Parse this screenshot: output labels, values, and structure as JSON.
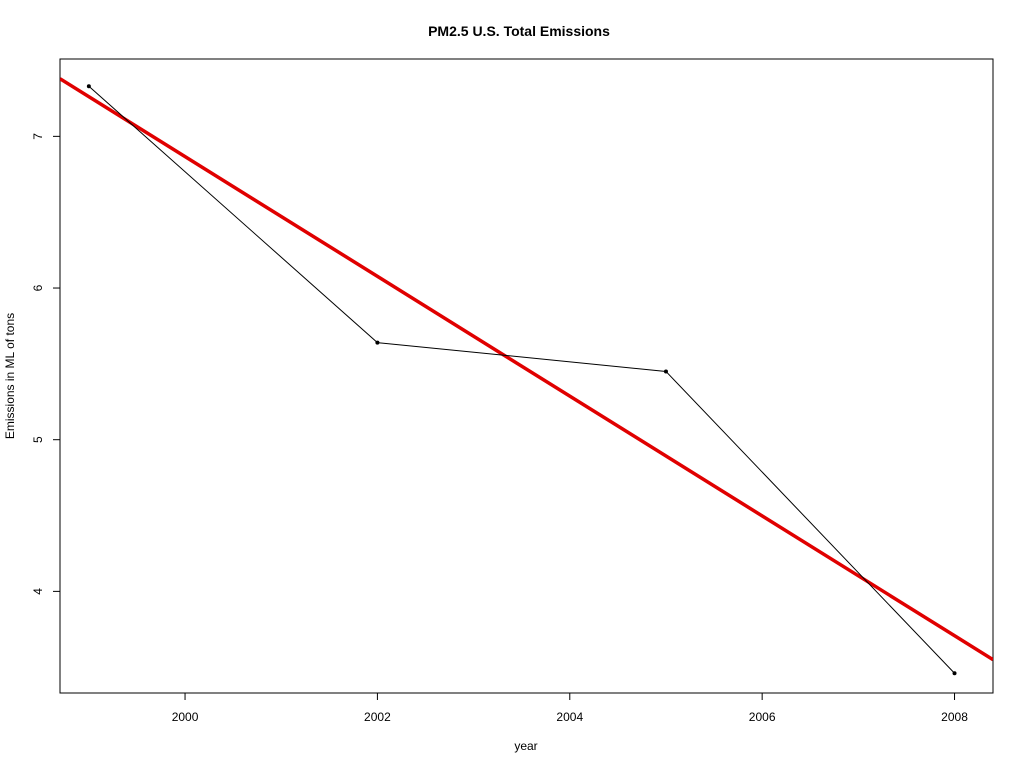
{
  "chart_data": {
    "type": "line",
    "title": "PM2.5 U.S. Total Emissions",
    "xlabel": "year",
    "ylabel": "Emissions in ML of tons",
    "xlim": [
      1998.7,
      2008.4
    ],
    "ylim": [
      3.33,
      7.51
    ],
    "x_ticks": [
      2000,
      2002,
      2004,
      2006,
      2008
    ],
    "y_ticks": [
      4,
      5,
      6,
      7
    ],
    "grid": false,
    "series": [
      {
        "points": [
          {
            "x": 1999,
            "y": 7.33
          },
          {
            "x": 2002,
            "y": 5.64
          },
          {
            "x": 2005,
            "y": 5.45
          },
          {
            "x": 2008,
            "y": 3.46
          }
        ],
        "color": "#000000",
        "style": "line-with-points"
      }
    ],
    "trend_line": {
      "type": "linear-regression",
      "color": "#e00000",
      "points": [
        {
          "x": 1998.7,
          "y": 7.38
        },
        {
          "x": 2008.4,
          "y": 3.55
        }
      ]
    }
  }
}
